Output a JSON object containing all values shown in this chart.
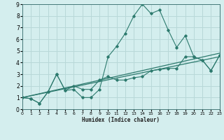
{
  "xlabel": "Humidex (Indice chaleur)",
  "x_values": [
    0,
    1,
    2,
    3,
    4,
    5,
    6,
    7,
    8,
    9,
    10,
    11,
    12,
    13,
    14,
    15,
    16,
    17,
    18,
    19,
    20,
    21,
    22,
    23
  ],
  "line1": [
    1.0,
    0.9,
    0.5,
    1.5,
    3.0,
    1.6,
    1.7,
    1.0,
    1.0,
    1.7,
    4.5,
    5.4,
    6.5,
    8.0,
    9.0,
    8.2,
    8.5,
    6.8,
    5.3,
    6.3,
    4.5,
    4.2,
    3.3,
    4.6
  ],
  "line2": [
    1.0,
    0.9,
    0.5,
    1.5,
    3.0,
    1.6,
    2.0,
    1.7,
    1.7,
    2.5,
    2.8,
    2.5,
    2.5,
    2.7,
    2.8,
    3.3,
    3.4,
    3.5,
    3.5,
    4.5,
    4.5,
    4.2,
    3.3,
    4.6
  ],
  "line3_x": [
    0,
    23
  ],
  "line3_y": [
    1.0,
    4.5
  ],
  "line4_x": [
    0,
    23
  ],
  "line4_y": [
    1.0,
    4.8
  ],
  "background_color": "#d4eeee",
  "grid_color": "#b8d8d8",
  "line_color": "#2d7a6e",
  "xlim": [
    0,
    23
  ],
  "ylim": [
    0,
    9
  ],
  "yticks": [
    0,
    1,
    2,
    3,
    4,
    5,
    6,
    7,
    8,
    9
  ],
  "xticks": [
    0,
    1,
    2,
    3,
    4,
    5,
    6,
    7,
    8,
    9,
    10,
    11,
    12,
    13,
    14,
    15,
    16,
    17,
    18,
    19,
    20,
    21,
    22,
    23
  ]
}
